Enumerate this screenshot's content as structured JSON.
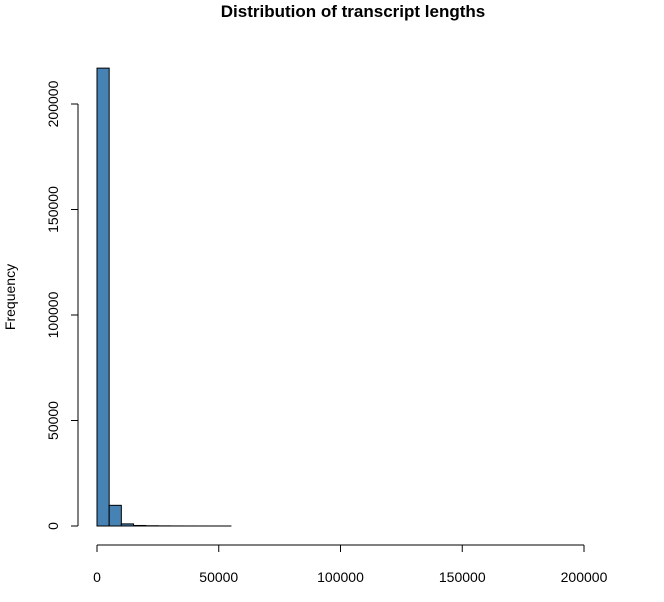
{
  "chart_data": {
    "type": "bar",
    "title": "Distribution of transcript lengths",
    "xlabel": "",
    "ylabel": "Frequency",
    "xlim": [
      0,
      210000
    ],
    "ylim": [
      0,
      217000
    ],
    "x_ticks": [
      0,
      50000,
      100000,
      150000,
      200000
    ],
    "y_ticks": [
      0,
      50000,
      100000,
      150000,
      200000
    ],
    "bin_width": 5000,
    "bin_start": 0,
    "values": [
      217000,
      9800,
      1000,
      250,
      120,
      60,
      30,
      15,
      8,
      5,
      3,
      2,
      1,
      1,
      1,
      1,
      1,
      1,
      1,
      1,
      1,
      1,
      1,
      1,
      1,
      1,
      1,
      1,
      1,
      1,
      1,
      1,
      1,
      1,
      1,
      1,
      1,
      1,
      1,
      1,
      1,
      1
    ],
    "bar_color": "#4682B4",
    "grid": false
  }
}
